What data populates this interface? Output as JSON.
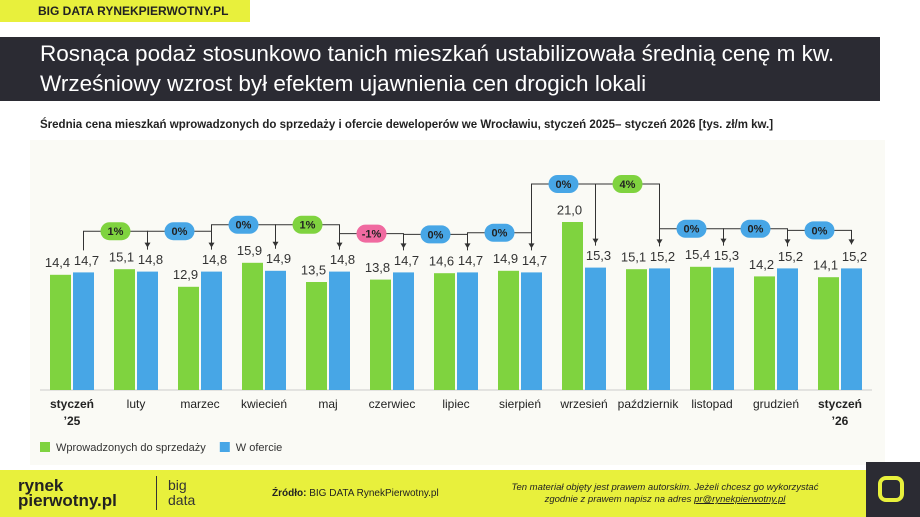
{
  "header": {
    "tag": "BIG DATA RYNEKPIERWOTNY.PL"
  },
  "chart_data": {
    "type": "bar",
    "title": "Rosnąca podaż stosunkowo tanich mieszkań ustabilizowała średnią cenę m kw. Wrześniowy wzrost był efektem ujawnienia cen drogich lokali",
    "subtitle": "Średnia cena mieszkań wprowadzonych do sprzedaży i ofercie deweloperów we Wrocławiu, styczeń 2025– styczeń 2026 [tys. zł/m kw.]",
    "categories": [
      "styczeń\n’25",
      "luty",
      "marzec",
      "kwiecień",
      "maj",
      "czerwiec",
      "lipiec",
      "sierpień",
      "wrzesień",
      "październik",
      "listopad",
      "grudzień",
      "styczeń\n’26"
    ],
    "series": [
      {
        "name": "Wprowadzonych do sprzedaży",
        "color": "#7fd33f",
        "values": [
          14.4,
          15.1,
          12.9,
          15.9,
          13.5,
          13.8,
          14.6,
          14.9,
          21.0,
          15.1,
          15.4,
          14.2,
          14.1
        ],
        "value_labels": [
          "14,4",
          "15,1",
          "12,9",
          "15,9",
          "13,5",
          "13,8",
          "14,6",
          "14,9",
          "21,0",
          "15,1",
          "15,4",
          "14,2",
          "14,1"
        ]
      },
      {
        "name": "W ofercie",
        "color": "#47a6e6",
        "values": [
          14.7,
          14.8,
          14.8,
          14.9,
          14.8,
          14.7,
          14.7,
          14.7,
          15.3,
          15.2,
          15.3,
          15.2,
          15.2
        ],
        "value_labels": [
          "14,7",
          "14,8",
          "14,8",
          "14,9",
          "14,8",
          "14,7",
          "14,7",
          "14,7",
          "15,3",
          "15,2",
          "15,3",
          "15,2",
          "15,2"
        ]
      }
    ],
    "changes": {
      "values": [
        1,
        0,
        0,
        1,
        -1,
        0,
        0,
        0,
        4,
        0,
        0,
        0
      ],
      "value_labels": [
        "1%",
        "0%",
        "0%",
        "1%",
        "-1%",
        "0%",
        "0%",
        "0%",
        "4%",
        "0%",
        "0%",
        "0%"
      ]
    },
    "ylim": [
      0,
      24
    ],
    "grid": false
  },
  "footer": {
    "logo": "rynek pierwotny.pl",
    "logo_sub": "big data",
    "source_label": "Źródło:",
    "source": "BIG DATA RynekPierwotny.pl",
    "copyright": "Ten materiał objęty jest prawem autorskim. Jeżeli chcesz go wykorzystać zgodnie z prawem napisz na adres",
    "email": "pr@rynekpierwotny.pl"
  }
}
